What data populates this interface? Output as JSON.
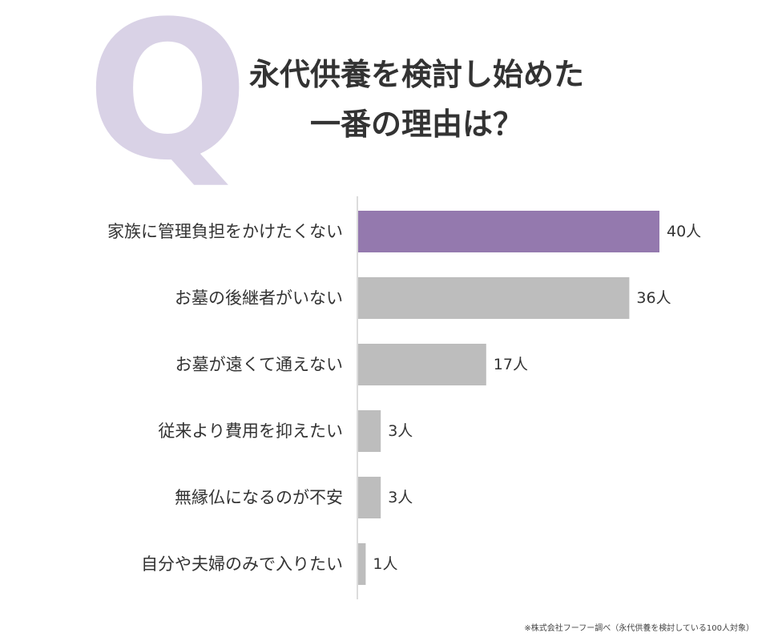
{
  "q_mark": "Q",
  "title": {
    "line1": "永代供養を検討し始めた",
    "line2": "一番の理由は？"
  },
  "footnote": "※株式会社フーフー調べ（永代供養を検討している100人対象）",
  "colors": {
    "highlight": "#9479ae",
    "bar": "#bdbdbd",
    "axis": "#d0d0d0",
    "q_mark": "#d9d2e6"
  },
  "chart_data": {
    "type": "bar",
    "orientation": "horizontal",
    "title": "永代供養を検討し始めた一番の理由は？",
    "categories": [
      "家族に管理負担をかけたくない",
      "お墓の後継者がいない",
      "お墓が遠くて通えない",
      "従来より費用を抑えたい",
      "無縁仏になるのが不安",
      "自分や夫婦のみで入りたい"
    ],
    "values": [
      40,
      36,
      17,
      3,
      3,
      1
    ],
    "value_labels": [
      "40人",
      "36人",
      "17人",
      "3人",
      "3人",
      "1人"
    ],
    "unit": "人",
    "highlight_index": 0,
    "xlim": [
      0,
      40
    ],
    "grid": false,
    "legend": "none"
  }
}
